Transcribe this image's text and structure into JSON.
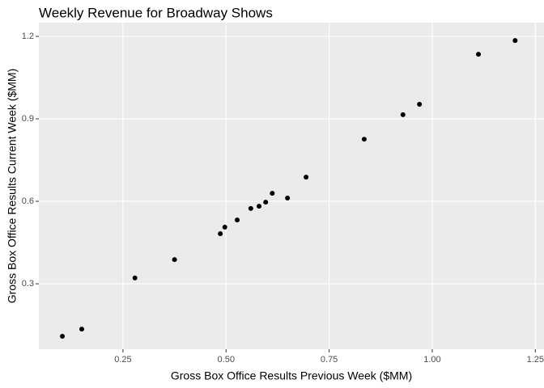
{
  "chart_data": {
    "type": "scatter",
    "title": "Weekly Revenue for Broadway Shows",
    "x_label": "Gross Box Office Results Previous Week ($MM)",
    "y_label": "Gross Box Office Results Current Week ($MM)",
    "x": [
      0.103,
      0.15,
      0.279,
      0.375,
      0.486,
      0.497,
      0.527,
      0.56,
      0.58,
      0.596,
      0.612,
      0.649,
      0.694,
      0.835,
      0.929,
      0.969,
      1.112,
      1.201
    ],
    "values": [
      0.109,
      0.135,
      0.321,
      0.388,
      0.482,
      0.506,
      0.532,
      0.574,
      0.582,
      0.597,
      0.629,
      0.612,
      0.688,
      0.826,
      0.915,
      0.953,
      1.135,
      1.185
    ],
    "color": "#000000",
    "xlim": [
      0.046,
      1.271
    ],
    "ylim": [
      0.062,
      1.25
    ],
    "xticks": [
      0.25,
      {
        "value": 0.5,
        "label": "0.50"
      },
      0.75,
      {
        "value": 1,
        "label": "1.00"
      },
      1.25
    ],
    "yticks": [
      0.3,
      0.6,
      0.9,
      1.2
    ],
    "grid": true
  }
}
